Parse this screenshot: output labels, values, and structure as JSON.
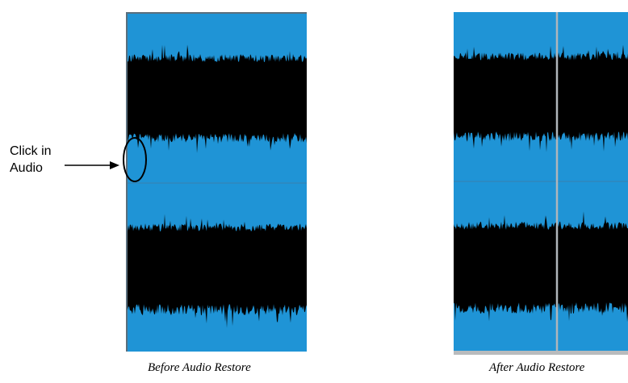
{
  "annotation": {
    "label_line1": "Click in",
    "label_line2": "Audio"
  },
  "captions": {
    "before": "Before Audio Restore",
    "after": "After Audio Restore"
  },
  "colors": {
    "waveform_background": "#1f94d6",
    "waveform_fill": "#000000",
    "channel_divider": "#3a7fae",
    "playhead": "#b0b6bb",
    "click_circle": "#000000"
  },
  "icons": {
    "annotation_pointer": "arrow-right-icon",
    "click_highlight": "ellipse-outline"
  }
}
